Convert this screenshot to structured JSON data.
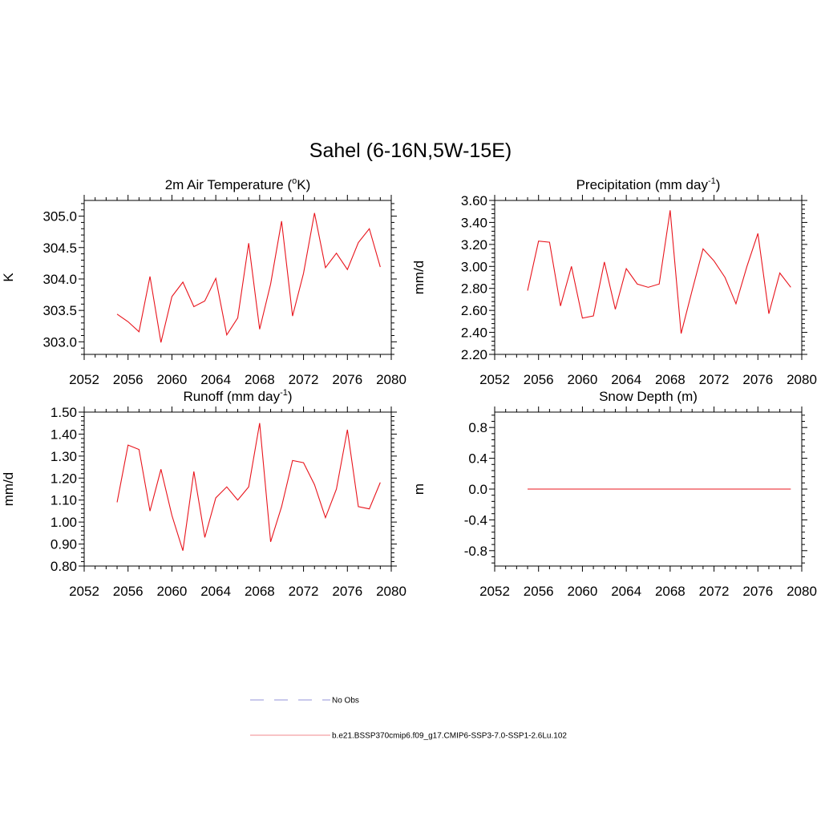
{
  "title": "Sahel (6-16N,5W-15E)",
  "line_color": "#e8141c",
  "obs_color": "#a9a9e0",
  "legend": {
    "obs_label": "No Obs",
    "model_label": "b.e21.BSSP370cmip6.f09_g17.CMIP6-SSP3-7.0-SSP1-2.6Lu.102"
  },
  "chart_data": [
    {
      "type": "line",
      "title_main": "2m Air Temperature (",
      "title_sup": "o",
      "title_end": "K)",
      "ylabel": "K",
      "xlim": [
        2052,
        2080
      ],
      "ylim": [
        302.8,
        305.25
      ],
      "xticks": [
        2052,
        2056,
        2060,
        2064,
        2068,
        2072,
        2076,
        2080
      ],
      "yticks": [
        303.0,
        303.5,
        304.0,
        304.5,
        305.0
      ],
      "yticklabels": [
        "303.0",
        "303.5",
        "304.0",
        "304.5",
        "305.0"
      ],
      "x": [
        2055,
        2056,
        2057,
        2058,
        2059,
        2060,
        2061,
        2062,
        2063,
        2064,
        2065,
        2066,
        2067,
        2068,
        2069,
        2070,
        2071,
        2072,
        2073,
        2074,
        2075,
        2076,
        2077,
        2078,
        2079
      ],
      "y": [
        303.44,
        303.32,
        303.16,
        304.04,
        302.99,
        303.72,
        303.95,
        303.56,
        303.65,
        304.01,
        303.11,
        303.38,
        304.57,
        303.2,
        303.92,
        304.92,
        303.41,
        304.09,
        305.05,
        304.18,
        304.41,
        304.15,
        304.58,
        304.8,
        304.19
      ]
    },
    {
      "type": "line",
      "title_main": "Precipitation (mm day",
      "title_sup": "-1",
      "title_end": ")",
      "ylabel": "mm/d",
      "xlim": [
        2052,
        2080
      ],
      "ylim": [
        2.2,
        3.6
      ],
      "xticks": [
        2052,
        2056,
        2060,
        2064,
        2068,
        2072,
        2076,
        2080
      ],
      "yticks": [
        2.2,
        2.4,
        2.6,
        2.8,
        3.0,
        3.2,
        3.4,
        3.6
      ],
      "yticklabels": [
        "2.20",
        "2.40",
        "2.60",
        "2.80",
        "3.00",
        "3.20",
        "3.40",
        "3.60"
      ],
      "x": [
        2055,
        2056,
        2057,
        2058,
        2059,
        2060,
        2061,
        2062,
        2063,
        2064,
        2065,
        2066,
        2067,
        2068,
        2069,
        2070,
        2071,
        2072,
        2073,
        2074,
        2075,
        2076,
        2077,
        2078,
        2079
      ],
      "y": [
        2.78,
        3.23,
        3.22,
        2.64,
        3.0,
        2.53,
        2.55,
        3.04,
        2.61,
        2.98,
        2.84,
        2.81,
        2.84,
        3.51,
        2.39,
        2.78,
        3.16,
        3.05,
        2.9,
        2.66,
        3.0,
        3.3,
        2.57,
        2.94,
        2.81
      ]
    },
    {
      "type": "line",
      "title_main": "Runoff (mm day",
      "title_sup": "-1",
      "title_end": ")",
      "ylabel": "mm/d",
      "xlim": [
        2052,
        2080
      ],
      "ylim": [
        0.8,
        1.5
      ],
      "xticks": [
        2052,
        2056,
        2060,
        2064,
        2068,
        2072,
        2076,
        2080
      ],
      "yticks": [
        0.8,
        0.9,
        1.0,
        1.1,
        1.2,
        1.3,
        1.4,
        1.5
      ],
      "yticklabels": [
        "0.80",
        "0.90",
        "1.00",
        "1.10",
        "1.20",
        "1.30",
        "1.40",
        "1.50"
      ],
      "x": [
        2055,
        2056,
        2057,
        2058,
        2059,
        2060,
        2061,
        2062,
        2063,
        2064,
        2065,
        2066,
        2067,
        2068,
        2069,
        2070,
        2071,
        2072,
        2073,
        2074,
        2075,
        2076,
        2077,
        2078,
        2079
      ],
      "y": [
        1.09,
        1.35,
        1.33,
        1.05,
        1.24,
        1.03,
        0.87,
        1.23,
        0.93,
        1.11,
        1.16,
        1.1,
        1.16,
        1.45,
        0.91,
        1.07,
        1.28,
        1.27,
        1.17,
        1.02,
        1.15,
        1.42,
        1.07,
        1.06,
        1.18
      ]
    },
    {
      "type": "line",
      "title_main": "Snow Depth (m)",
      "title_sup": "",
      "title_end": "",
      "ylabel": "m",
      "xlim": [
        2052,
        2080
      ],
      "ylim": [
        -1.0,
        1.0
      ],
      "xticks": [
        2052,
        2056,
        2060,
        2064,
        2068,
        2072,
        2076,
        2080
      ],
      "yticks": [
        -0.8,
        -0.4,
        0.0,
        0.4,
        0.8
      ],
      "yticklabels": [
        "-0.8",
        "-0.4",
        "0.0",
        "0.4",
        "0.8"
      ],
      "x": [
        2055,
        2056,
        2057,
        2058,
        2059,
        2060,
        2061,
        2062,
        2063,
        2064,
        2065,
        2066,
        2067,
        2068,
        2069,
        2070,
        2071,
        2072,
        2073,
        2074,
        2075,
        2076,
        2077,
        2078,
        2079
      ],
      "y": [
        0,
        0,
        0,
        0,
        0,
        0,
        0,
        0,
        0,
        0,
        0,
        0,
        0,
        0,
        0,
        0,
        0,
        0,
        0,
        0,
        0,
        0,
        0,
        0,
        0
      ]
    }
  ]
}
